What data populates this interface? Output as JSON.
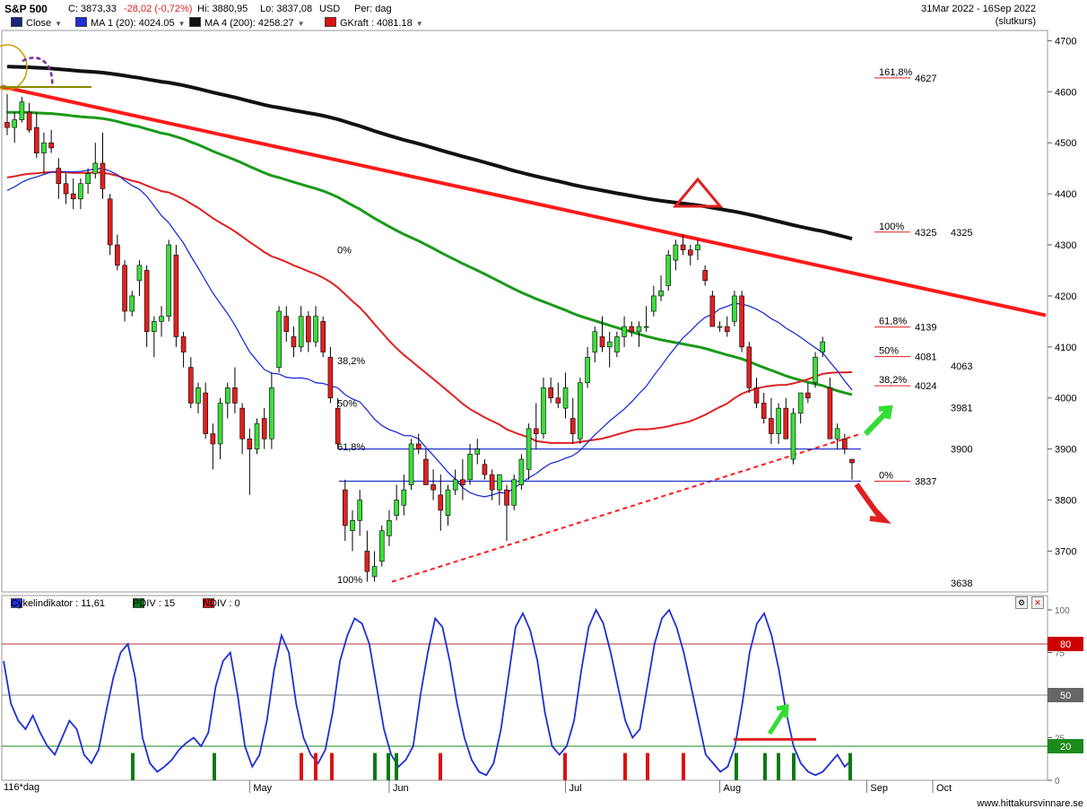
{
  "header": {
    "symbol": "S&P 500",
    "close_label": "C: 3873,33",
    "change": "-28,02 (-0,72%)",
    "hi": "Hi: 3880,95",
    "lo": "Lo: 3837,08",
    "currency": "USD",
    "period": "Per: dag",
    "date_range": "31Mar 2022 - 16Sep 2022",
    "basis": "(slutkurs)"
  },
  "legend": [
    {
      "label": "Close",
      "color": "#1a237e"
    },
    {
      "label": "MA 1 (20): 4024.05",
      "color": "#1e2fd6"
    },
    {
      "label": "MA 4 (200): 4258.27",
      "color": "#111111"
    },
    {
      "label": "GKraft : 4081.18",
      "color": "#dd1111"
    }
  ],
  "indicator_legend": [
    {
      "label": "Cykelindikator : 11,61",
      "color": "#1e2fd6"
    },
    {
      "label": "PDIV : 15",
      "color": "#0a7a14"
    },
    {
      "label": "NDIV : 0",
      "color": "#dd1111"
    }
  ],
  "footer": {
    "bars_label": "116*dag",
    "site": "www.hittakursvinnare.se"
  },
  "colors": {
    "up": "#3ddc3d",
    "down": "#e02020",
    "ma20": "#1e2fd6",
    "ma50": "#e02020",
    "ma100": "#1a9a1a",
    "ma200": "#111111",
    "trend": "#ff1a1a"
  },
  "chart_data": [
    {
      "type": "candlestick",
      "title": "S&P 500",
      "ylim": [
        3620,
        4720
      ],
      "y_ticks": [
        "4700",
        "4600",
        "4500",
        "4400",
        "4300",
        "4200",
        "4100",
        "4000",
        "3900",
        "3800",
        "3700"
      ],
      "x_month_labels": [
        "May",
        "Jun",
        "Jul",
        "Aug",
        "Sep",
        "Oct"
      ],
      "candles_ohlc": [
        [
          4540,
          4595,
          4515,
          4530
        ],
        [
          4530,
          4560,
          4500,
          4545
        ],
        [
          4545,
          4590,
          4540,
          4580
        ],
        [
          4560,
          4578,
          4520,
          4525
        ],
        [
          4530,
          4560,
          4470,
          4480
        ],
        [
          4480,
          4520,
          4440,
          4500
        ],
        [
          4500,
          4525,
          4480,
          4490
        ],
        [
          4450,
          4470,
          4390,
          4420
        ],
        [
          4420,
          4440,
          4380,
          4400
        ],
        [
          4400,
          4430,
          4370,
          4390
        ],
        [
          4390,
          4430,
          4370,
          4420
        ],
        [
          4420,
          4450,
          4400,
          4440
        ],
        [
          4440,
          4500,
          4430,
          4460
        ],
        [
          4460,
          4520,
          4390,
          4410
        ],
        [
          4390,
          4400,
          4280,
          4300
        ],
        [
          4300,
          4320,
          4250,
          4260
        ],
        [
          4260,
          4270,
          4150,
          4170
        ],
        [
          4170,
          4210,
          4160,
          4200
        ],
        [
          4230,
          4270,
          4200,
          4260
        ],
        [
          4250,
          4260,
          4100,
          4130
        ],
        [
          4130,
          4160,
          4080,
          4150
        ],
        [
          4150,
          4180,
          4120,
          4160
        ],
        [
          4160,
          4310,
          4150,
          4300
        ],
        [
          4280,
          4300,
          4100,
          4120
        ],
        [
          4120,
          4130,
          4060,
          4090
        ],
        [
          4060,
          4080,
          3980,
          3990
        ],
        [
          3990,
          4030,
          3970,
          4020
        ],
        [
          4010,
          4030,
          3920,
          3930
        ],
        [
          3930,
          3950,
          3860,
          3910
        ],
        [
          3910,
          4000,
          3880,
          3990
        ],
        [
          3990,
          4030,
          3960,
          4020
        ],
        [
          4020,
          4060,
          3970,
          3990
        ],
        [
          3980,
          3990,
          3890,
          3920
        ],
        [
          3920,
          3940,
          3810,
          3900
        ],
        [
          3900,
          3960,
          3890,
          3950
        ],
        [
          3960,
          3980,
          3900,
          3920
        ],
        [
          3920,
          4050,
          3900,
          4020
        ],
        [
          4060,
          4180,
          4050,
          4170
        ],
        [
          4160,
          4180,
          4110,
          4130
        ],
        [
          4120,
          4140,
          4080,
          4100
        ],
        [
          4100,
          4180,
          4090,
          4160
        ],
        [
          4160,
          4170,
          4090,
          4110
        ],
        [
          4110,
          4180,
          4100,
          4160
        ],
        [
          4150,
          4160,
          4080,
          4090
        ],
        [
          4080,
          4100,
          3990,
          4000
        ],
        [
          3980,
          4000,
          3900,
          3910
        ],
        [
          3820,
          3840,
          3720,
          3750
        ],
        [
          3740,
          3780,
          3700,
          3760
        ],
        [
          3760,
          3820,
          3730,
          3800
        ],
        [
          3700,
          3740,
          3640,
          3660
        ],
        [
          3650,
          3700,
          3640,
          3670
        ],
        [
          3680,
          3750,
          3670,
          3740
        ],
        [
          3730,
          3780,
          3710,
          3760
        ],
        [
          3770,
          3830,
          3760,
          3800
        ],
        [
          3790,
          3850,
          3770,
          3820
        ],
        [
          3830,
          3920,
          3820,
          3910
        ],
        [
          3910,
          3930,
          3890,
          3900
        ],
        [
          3880,
          3900,
          3830,
          3830
        ],
        [
          3830,
          3860,
          3800,
          3820
        ],
        [
          3810,
          3850,
          3740,
          3780
        ],
        [
          3770,
          3830,
          3750,
          3820
        ],
        [
          3820,
          3860,
          3810,
          3840
        ],
        [
          3840,
          3880,
          3800,
          3830
        ],
        [
          3840,
          3910,
          3830,
          3890
        ],
        [
          3890,
          3920,
          3870,
          3900
        ],
        [
          3870,
          3880,
          3840,
          3850
        ],
        [
          3850,
          3860,
          3800,
          3820
        ],
        [
          3820,
          3850,
          3790,
          3850
        ],
        [
          3820,
          3830,
          3720,
          3790
        ],
        [
          3790,
          3850,
          3780,
          3840
        ],
        [
          3830,
          3890,
          3820,
          3880
        ],
        [
          3860,
          3950,
          3840,
          3940
        ],
        [
          3940,
          3990,
          3900,
          3930
        ],
        [
          3930,
          4040,
          3920,
          4020
        ],
        [
          4020,
          4040,
          3990,
          4000
        ],
        [
          4000,
          4030,
          3980,
          3990
        ],
        [
          3980,
          4050,
          3960,
          4020
        ],
        [
          3960,
          4000,
          3910,
          3930
        ],
        [
          3920,
          4040,
          3910,
          4030
        ],
        [
          4030,
          4100,
          4020,
          4080
        ],
        [
          4090,
          4140,
          4070,
          4130
        ],
        [
          4120,
          4160,
          4090,
          4100
        ],
        [
          4100,
          4130,
          4060,
          4110
        ],
        [
          4090,
          4130,
          4080,
          4120
        ],
        [
          4120,
          4160,
          4100,
          4140
        ],
        [
          4140,
          4150,
          4120,
          4130
        ],
        [
          4130,
          4150,
          4100,
          4140
        ],
        [
          4140,
          4180,
          4130,
          4140
        ],
        [
          4170,
          4220,
          4160,
          4200
        ],
        [
          4200,
          4240,
          4190,
          4210
        ],
        [
          4220,
          4290,
          4210,
          4280
        ],
        [
          4270,
          4310,
          4250,
          4300
        ],
        [
          4300,
          4320,
          4280,
          4290
        ],
        [
          4290,
          4300,
          4260,
          4280
        ],
        [
          4290,
          4310,
          4270,
          4300
        ],
        [
          4250,
          4260,
          4220,
          4230
        ],
        [
          4200,
          4210,
          4150,
          4140
        ],
        [
          4140,
          4150,
          4130,
          4140
        ],
        [
          4140,
          4160,
          4120,
          4130
        ],
        [
          4150,
          4210,
          4140,
          4200
        ],
        [
          4200,
          4210,
          4090,
          4100
        ],
        [
          4100,
          4110,
          4010,
          4020
        ],
        [
          4020,
          4040,
          3980,
          3990
        ],
        [
          3990,
          4010,
          3950,
          3960
        ],
        [
          3960,
          4000,
          3910,
          3930
        ],
        [
          3930,
          3990,
          3910,
          3980
        ],
        [
          3980,
          4000,
          3920,
          3920
        ],
        [
          3880,
          3980,
          3870,
          3970
        ],
        [
          3970,
          4010,
          3950,
          4010
        ],
        [
          4010,
          4030,
          3990,
          4000
        ],
        [
          4030,
          4090,
          4020,
          4080
        ],
        [
          4090,
          4120,
          4080,
          4110
        ],
        [
          4020,
          4040,
          3920,
          3920
        ],
        [
          3920,
          3950,
          3900,
          3940
        ],
        [
          3920,
          3930,
          3890,
          3900
        ],
        [
          3880,
          3880,
          3840,
          3873
        ]
      ],
      "annotations": [
        {
          "label": "161,8%",
          "value": 4627
        },
        {
          "label": "100%",
          "value": 4325
        },
        {
          "label": "61,8%",
          "value": 4139
        },
        {
          "label": "50%",
          "value": 4081
        },
        {
          "label": "38,2%",
          "value": 4024
        },
        {
          "label": "0%",
          "value": 3837
        },
        {
          "label": "0%",
          "value": 4290
        },
        {
          "label": "38,2%",
          "value": 4073
        },
        {
          "label": "50%",
          "value": 3990
        },
        {
          "label": "61,8%",
          "value": 3905
        },
        {
          "label": "100%",
          "value": 3645
        }
      ],
      "price_marks": [
        "4325",
        "4063",
        "3981",
        "3900",
        "3638"
      ]
    },
    {
      "type": "line",
      "title": "Cykelindikator",
      "ylim": [
        0,
        100
      ],
      "y_ticks": [
        "100",
        "75",
        "25",
        "0"
      ],
      "levels": [
        "80",
        "50",
        "20"
      ],
      "values": [
        70,
        45,
        35,
        30,
        38,
        28,
        20,
        15,
        25,
        35,
        30,
        15,
        10,
        18,
        40,
        60,
        75,
        80,
        60,
        25,
        10,
        5,
        8,
        12,
        18,
        22,
        25,
        20,
        28,
        55,
        70,
        75,
        50,
        20,
        8,
        15,
        35,
        65,
        85,
        75,
        45,
        25,
        15,
        10,
        18,
        40,
        70,
        85,
        95,
        92,
        80,
        55,
        30,
        15,
        8,
        12,
        20,
        50,
        75,
        95,
        90,
        70,
        45,
        25,
        12,
        5,
        3,
        10,
        30,
        60,
        90,
        98,
        88,
        70,
        40,
        20,
        15,
        20,
        35,
        65,
        90,
        100,
        92,
        75,
        55,
        35,
        25,
        30,
        55,
        80,
        95,
        100,
        90,
        75,
        55,
        35,
        15,
        10,
        5,
        8,
        20,
        45,
        75,
        92,
        98,
        85,
        65,
        40,
        20,
        10,
        5,
        3,
        5,
        10,
        15,
        8,
        12
      ]
    }
  ]
}
